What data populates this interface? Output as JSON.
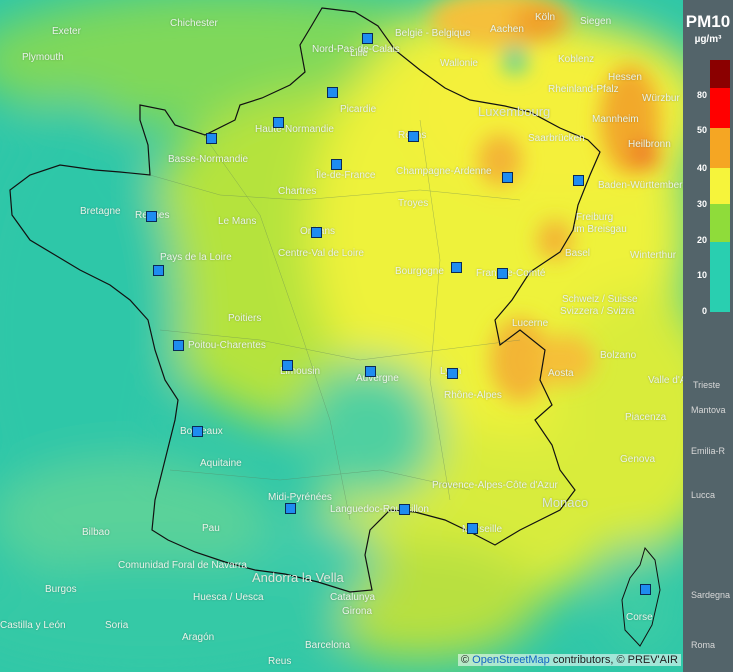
{
  "legend": {
    "title": "PM10",
    "unit": "µg/m³",
    "ticks": [
      "0",
      "10",
      "20",
      "30",
      "40",
      "50",
      "80"
    ],
    "colors": [
      "#29cfb0",
      "#8fdc3a",
      "#f6f43b",
      "#f5a623",
      "#ff0000",
      "#8b0000"
    ],
    "side_cities": [
      "Trieste",
      "Mantova",
      "Emilia-R",
      "Lucca",
      "Sardegna",
      "Roma"
    ]
  },
  "attribution": {
    "prefix": "©",
    "osm_link": "OpenStreetMap",
    "suffix": "contributors, © PREV'AIR"
  },
  "labels": {
    "chichester": "Chichester",
    "exeter": "Exeter",
    "plymouth": "Plymouth",
    "koln": "Köln",
    "siegen": "Siegen",
    "aachen": "Aachen",
    "koblenz": "Koblenz",
    "wallonie": "Wallonie",
    "luxembourg": "Luxembourg",
    "saarbrucken": "Saarbrücken",
    "mannheim": "Mannheim",
    "heilbronn": "Heilbronn",
    "wurzburg": "Würzbur",
    "bade": "Baden-Württemberg",
    "freiburg": "Freiburg",
    "breisgau": "im Breisgau",
    "basel": "Basel",
    "winterthur": "Winterthur",
    "schweiz": "Schweiz / Suisse",
    "svizzera": "Svizzera / Svizra",
    "lucerne": "Lucerne",
    "aosta": "Aosta",
    "valdaosta": "Valle d'Aosta",
    "piacenza": "Piacenza",
    "genova": "Genova",
    "monaco": "Monaco",
    "nord": "Nord-Pas-de-Calais",
    "picardie": "Picardie",
    "reims": "Reims",
    "haute": "Haute-Normandie",
    "basse": "Basse-Normandie",
    "iledefrance": "Île-de-France",
    "champagne": "Champagne-Ardenne",
    "chartres": "Chartres",
    "troyes": "Troyes",
    "lemans": "Le Mans",
    "bretagne": "Bretagne",
    "rennes": "Rennes",
    "orleans": "Orléans",
    "centre": "Centre-Val de Loire",
    "paysloire": "Pays de la Loire",
    "bourgogne": "Bourgogne",
    "franchecomte": "Franche-Comté",
    "poitiers": "Poitiers",
    "poitou": "Poitou-Charentes",
    "limousin": "Limousin",
    "auvergne": "Auvergne",
    "rhone": "Rhône-Alpes",
    "lyon": "Lyon",
    "bordeaux": "Bordeaux",
    "aquitaine": "Aquitaine",
    "midi": "Midi-Pyrénées",
    "languedoc": "Languedoc-Roussillon",
    "provence": "Provence-Alpes-Côte d'Azur",
    "marseille": "Marseille",
    "pau": "Pau",
    "bilbao": "Bilbao",
    "navarra": "Comunidad Foral de Navarra",
    "andorra": "Andorra la Vella",
    "burgos": "Burgos",
    "huesca": "Huesca / Uesca",
    "catalunya": "Catalunya",
    "girona": "Girona",
    "leon": "Castilla y León",
    "soria": "Soria",
    "aragon": "Aragón",
    "barcelona": "Barcelona",
    "reus": "Reus",
    "belgie": "België - Belgique",
    "lille": "Lille",
    "rheinland": "Rheinland-Pfalz",
    "hessen": "Hessen",
    "bolzano": "Bolzano",
    "corse": "Corse"
  }
}
